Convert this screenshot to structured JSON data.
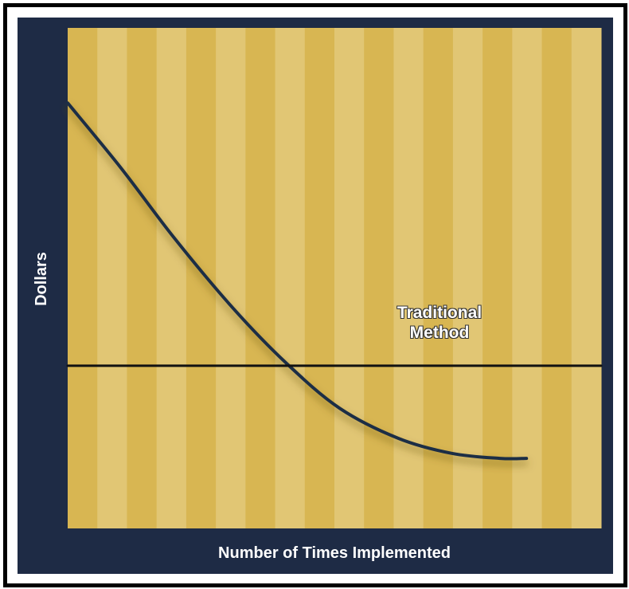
{
  "chart_data": {
    "type": "line",
    "xlabel": "Number of Times Implemented",
    "ylabel": "Dollars",
    "xlim": [
      0,
      100
    ],
    "ylim": [
      0,
      100
    ],
    "series": [
      {
        "color": "#1f2d45",
        "x": [
          0,
          10,
          20,
          31,
          41,
          51,
          62,
          72,
          81,
          86
        ],
        "values": [
          85,
          72,
          58,
          44,
          33,
          24,
          18,
          15,
          14,
          14
        ]
      },
      {
        "name": "Traditional Method",
        "color": "#111111",
        "x": [
          0,
          100
        ],
        "values": [
          32.5,
          32.5
        ]
      }
    ]
  }
}
